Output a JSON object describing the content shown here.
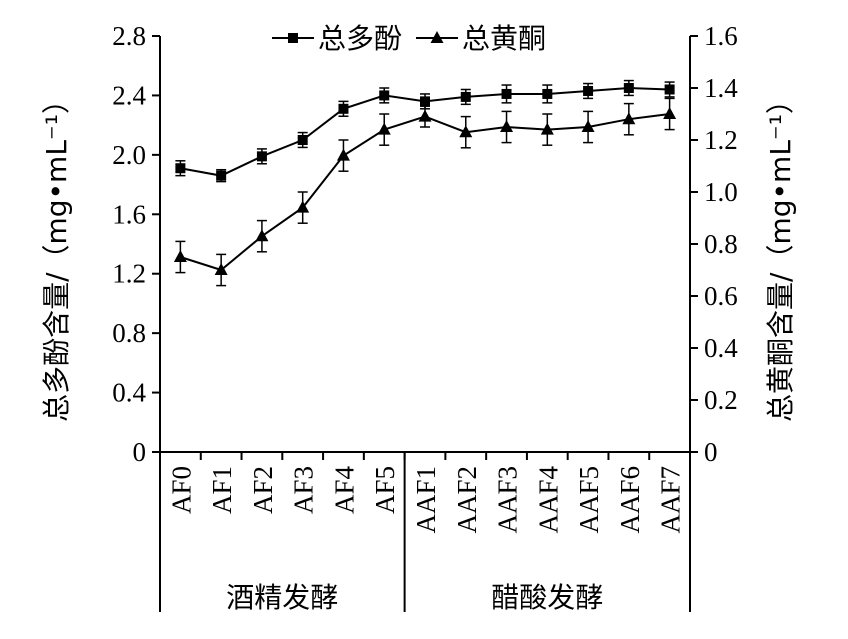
{
  "chart_data": {
    "type": "line",
    "categories": [
      "AF0",
      "AF1",
      "AF2",
      "AF3",
      "AF4",
      "AF5",
      "AAF1",
      "AAF2",
      "AAF3",
      "AAF4",
      "AAF5",
      "AAF6",
      "AAF7"
    ],
    "groups": [
      {
        "label": "酒精发酵",
        "categories": [
          "AF0",
          "AF1",
          "AF2",
          "AF3",
          "AF4",
          "AF5"
        ]
      },
      {
        "label": "醋酸发酵",
        "categories": [
          "AAF1",
          "AAF2",
          "AAF3",
          "AAF4",
          "AAF5",
          "AAF6",
          "AAF7"
        ]
      }
    ],
    "y_left": {
      "label": "总多酚含量/（mg•mL⁻¹）",
      "ylim": [
        0,
        2.8
      ],
      "ticks": [
        "0",
        "0.4",
        "0.8",
        "1.2",
        "1.6",
        "2.0",
        "2.4",
        "2.8"
      ]
    },
    "y_right": {
      "label": "总黄酮含量/（mg•mL⁻¹）",
      "ylim": [
        0,
        1.6
      ],
      "ticks": [
        "0",
        "0.2",
        "0.4",
        "0.6",
        "0.8",
        "1.0",
        "1.2",
        "1.4",
        "1.6"
      ]
    },
    "series": [
      {
        "name": "总多酚",
        "axis": "left",
        "marker": "square",
        "values": [
          1.91,
          1.86,
          1.99,
          2.1,
          2.31,
          2.4,
          2.36,
          2.39,
          2.41,
          2.41,
          2.43,
          2.45,
          2.44
        ],
        "errors": [
          0.05,
          0.04,
          0.05,
          0.05,
          0.05,
          0.05,
          0.05,
          0.05,
          0.06,
          0.06,
          0.05,
          0.05,
          0.05
        ]
      },
      {
        "name": "总黄酮",
        "axis": "right",
        "marker": "triangle",
        "values": [
          0.75,
          0.7,
          0.83,
          0.94,
          1.14,
          1.24,
          1.29,
          1.23,
          1.25,
          1.24,
          1.25,
          1.28,
          1.3
        ],
        "errors": [
          0.06,
          0.06,
          0.06,
          0.06,
          0.06,
          0.06,
          0.04,
          0.06,
          0.06,
          0.06,
          0.06,
          0.06,
          0.06
        ]
      }
    ],
    "legend_position": "top-center",
    "grid": false,
    "colors": {
      "line": "#000000",
      "background": "#ffffff"
    }
  }
}
